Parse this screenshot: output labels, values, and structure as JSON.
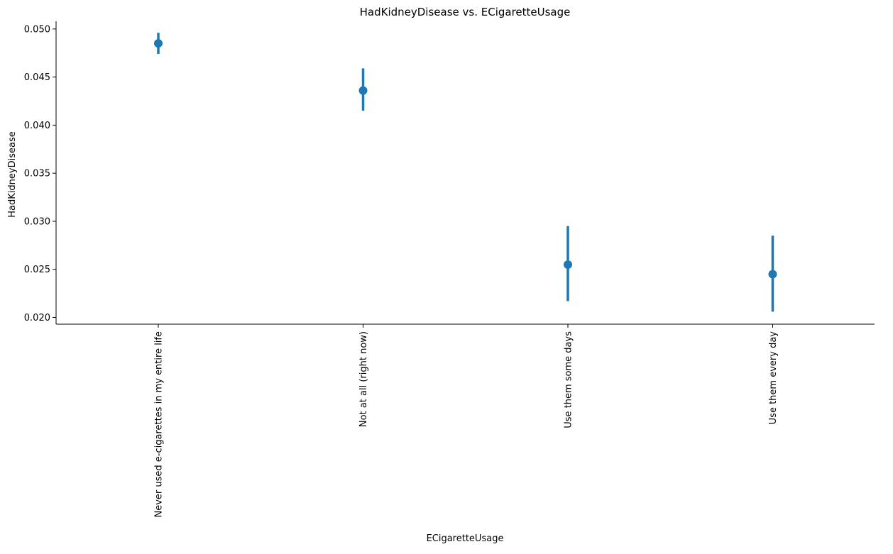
{
  "chart_data": {
    "type": "pointplot",
    "title": "HadKidneyDisease vs. ECigaretteUsage",
    "xlabel": "ECigaretteUsage",
    "ylabel": "HadKidneyDisease",
    "categories": [
      "Never used e-cigarettes in my entire life",
      "Not at all (right now)",
      "Use them some days",
      "Use them every day"
    ],
    "values": [
      0.0485,
      0.0436,
      0.0255,
      0.0245
    ],
    "ci_low": [
      0.0474,
      0.0415,
      0.0217,
      0.0206
    ],
    "ci_high": [
      0.0496,
      0.0459,
      0.0295,
      0.0285
    ],
    "ylim": [
      0.0193,
      0.0508
    ],
    "yticks": [
      0.02,
      0.025,
      0.03,
      0.035,
      0.04,
      0.045,
      0.05
    ],
    "ytick_labels": [
      "0.020",
      "0.025",
      "0.030",
      "0.035",
      "0.040",
      "0.045",
      "0.050"
    ],
    "grid": false,
    "color": "#1f77b4"
  }
}
